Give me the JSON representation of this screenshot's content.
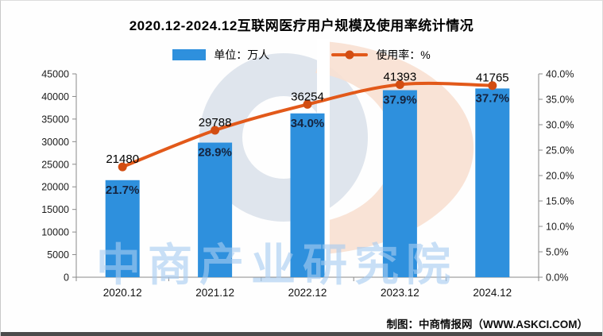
{
  "window": {
    "footer_credit": "制图：中商情报网（WWW.ASKCI.COM）",
    "watermark_text": "中商产业研究院"
  },
  "legend": {
    "bar_label": "单位：万人",
    "line_label": "使用率：%"
  },
  "chart_data": {
    "type": "bar",
    "subtype": "combo-bar-line",
    "title": "2020.12-2024.12互联网医疗用户规模及使用率统计情况",
    "categories": [
      "2020.12",
      "2021.12",
      "2022.12",
      "2023.12",
      "2024.12"
    ],
    "series": [
      {
        "name": "单位：万人",
        "chart": "bar",
        "axis": "left",
        "values": [
          21480,
          29788,
          36254,
          41393,
          41765
        ],
        "data_labels": [
          "21480",
          "29788",
          "36254",
          "41393",
          "41765"
        ]
      },
      {
        "name": "使用率：%",
        "chart": "line",
        "axis": "right",
        "values": [
          21.7,
          28.9,
          34.0,
          37.9,
          37.7
        ],
        "data_labels": [
          "21.7%",
          "28.9%",
          "34.0%",
          "37.9%",
          "37.7%"
        ]
      }
    ],
    "left_axis": {
      "min": 0,
      "max": 45000,
      "step": 5000,
      "labels": [
        "0",
        "5000",
        "10000",
        "15000",
        "20000",
        "25000",
        "30000",
        "35000",
        "40000",
        "45000"
      ]
    },
    "right_axis": {
      "min": 0,
      "max": 40,
      "step": 5,
      "labels": [
        "0.0%",
        "5.0%",
        "10.0%",
        "15.0%",
        "20.0%",
        "25.0%",
        "30.0%",
        "35.0%",
        "40.0%"
      ]
    },
    "grid": false,
    "legend_position": "top"
  },
  "colors": {
    "bar": "#2e90dd",
    "line": "#e2591a",
    "marker": "#d24d12",
    "rate_label": "#15243f",
    "axis": "#8a8a8a",
    "watermark_text": "rgba(166,204,240,0.62)",
    "watermark_circle": "#d9e1ea",
    "watermark_peach": "#f8e0d1"
  }
}
